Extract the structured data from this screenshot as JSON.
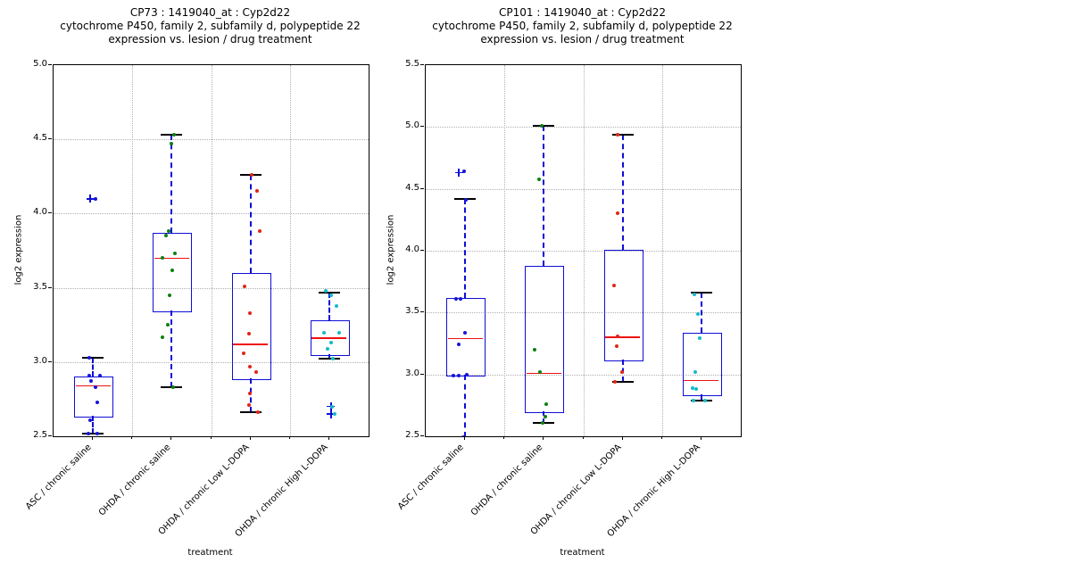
{
  "xlabel": "treatment",
  "ylabel": "log2 expression",
  "categories": [
    "ASC / chronic saline",
    "OHDA / chronic saline",
    "OHDA / chronic Low L-DOPA",
    "OHDA / chronic High L-DOPA"
  ],
  "colors": {
    "box": "#0e0ed6",
    "median": "#ee1111",
    "whisker": "#0e0ed6",
    "cap": "#000000",
    "flier": "#0e0ed6",
    "grid": "#b0b0b0",
    "axis": "#000000",
    "point_blue": "#1515dd",
    "point_green": "#0d7f12",
    "point_red": "#e12517",
    "point_cyan": "#12bcc7"
  },
  "chart_data": [
    {
      "id": "cp73",
      "type": "box",
      "title_lines": [
        "CP73 : 1419040_at : Cyp2d22",
        "cytochrome P450, family 2, subfamily d, polypeptide 22",
        "expression vs. lesion / drug treatment"
      ],
      "ylim": [
        2.5,
        5.0
      ],
      "ytick_labels": [
        "5.0",
        "4.5",
        "4.0",
        "3.5",
        "3.0",
        "2.5"
      ],
      "grid": true,
      "groups": [
        {
          "category": "ASC / chronic saline",
          "point_color": "#1515dd",
          "box": {
            "lo": 2.52,
            "q1": 2.64,
            "med": 2.84,
            "q3": 2.9,
            "hi": 3.03
          },
          "fliers": [
            [
              4.1,
              -3
            ]
          ],
          "points": [
            [
              4.1,
              3
            ],
            [
              3.03,
              -4
            ],
            [
              2.91,
              -4
            ],
            [
              2.91,
              8
            ],
            [
              2.87,
              -2
            ],
            [
              2.83,
              3
            ],
            [
              2.73,
              5
            ],
            [
              2.61,
              -3
            ],
            [
              2.52,
              -5
            ],
            [
              2.52,
              5
            ]
          ]
        },
        {
          "category": "OHDA / chronic saline",
          "point_color": "#0d7f12",
          "box": {
            "lo": 2.83,
            "q1": 3.35,
            "med": 3.7,
            "q3": 3.87,
            "hi": 4.53
          },
          "fliers": [],
          "points": [
            [
              4.53,
              3
            ],
            [
              4.47,
              0
            ],
            [
              3.88,
              -3
            ],
            [
              3.85,
              -6
            ],
            [
              3.73,
              4
            ],
            [
              3.7,
              -10
            ],
            [
              3.62,
              1
            ],
            [
              3.45,
              -2
            ],
            [
              3.25,
              -4
            ],
            [
              3.17,
              -10
            ],
            [
              2.83,
              2
            ]
          ]
        },
        {
          "category": "OHDA / chronic Low L-DOPA",
          "point_color": "#e12517",
          "box": {
            "lo": 2.66,
            "q1": 2.89,
            "med": 3.12,
            "q3": 3.6,
            "hi": 4.26
          },
          "fliers": [],
          "points": [
            [
              4.26,
              1
            ],
            [
              4.15,
              7
            ],
            [
              3.88,
              10
            ],
            [
              3.51,
              -7
            ],
            [
              3.33,
              -1
            ],
            [
              3.19,
              -2
            ],
            [
              3.06,
              -8
            ],
            [
              2.97,
              -1
            ],
            [
              2.93,
              6
            ],
            [
              2.79,
              -1
            ],
            [
              2.71,
              -2
            ],
            [
              2.66,
              8
            ]
          ]
        },
        {
          "category": "OHDA / chronic High L-DOPA",
          "point_color": "#12bcc7",
          "box": {
            "lo": 3.02,
            "q1": 3.05,
            "med": 3.16,
            "q3": 3.28,
            "hi": 3.47
          },
          "fliers": [
            [
              2.7,
              2
            ],
            [
              2.65,
              2
            ]
          ],
          "points": [
            [
              3.48,
              -4
            ],
            [
              3.45,
              2
            ],
            [
              3.38,
              8
            ],
            [
              3.2,
              -6
            ],
            [
              3.2,
              11
            ],
            [
              3.13,
              2
            ],
            [
              3.09,
              -2
            ],
            [
              3.02,
              4
            ],
            [
              2.7,
              3
            ],
            [
              2.65,
              6
            ]
          ]
        }
      ]
    },
    {
      "id": "cp101",
      "type": "box",
      "title_lines": [
        "CP101 : 1419040_at : Cyp2d22",
        "cytochrome P450, family 2, subfamily d, polypeptide 22",
        "expression vs. lesion / drug treatment"
      ],
      "ylim": [
        2.5,
        5.5
      ],
      "ytick_labels": [
        "5.5",
        "5.0",
        "4.5",
        "4.0",
        "3.5",
        "3.0",
        "2.5"
      ],
      "grid": true,
      "groups": [
        {
          "category": "ASC / chronic saline",
          "point_color": "#1515dd",
          "box": {
            "lo": 2.49,
            "q1": 3.0,
            "med": 3.29,
            "q3": 3.62,
            "hi": 4.42
          },
          "fliers": [
            [
              4.63,
              -7
            ]
          ],
          "points": [
            [
              4.64,
              -1
            ],
            [
              4.41,
              1
            ],
            [
              3.61,
              -10
            ],
            [
              3.61,
              -5
            ],
            [
              3.34,
              0
            ],
            [
              3.24,
              -7
            ],
            [
              3.0,
              2
            ],
            [
              2.99,
              -13
            ],
            [
              2.99,
              -7
            ],
            [
              2.49,
              -2
            ]
          ]
        },
        {
          "category": "OHDA / chronic saline",
          "point_color": "#0d7f12",
          "box": {
            "lo": 2.61,
            "q1": 2.7,
            "med": 3.01,
            "q3": 3.88,
            "hi": 5.01
          },
          "fliers": [],
          "points": [
            [
              5.01,
              -2
            ],
            [
              4.58,
              -5
            ],
            [
              3.2,
              -10
            ],
            [
              3.02,
              -4
            ],
            [
              2.76,
              3
            ],
            [
              2.66,
              2
            ],
            [
              2.61,
              -1
            ]
          ]
        },
        {
          "category": "OHDA / chronic Low L-DOPA",
          "point_color": "#e12517",
          "box": {
            "lo": 2.94,
            "q1": 3.12,
            "med": 3.3,
            "q3": 4.01,
            "hi": 4.94
          },
          "fliers": [],
          "points": [
            [
              4.94,
              -6
            ],
            [
              4.3,
              -6
            ],
            [
              3.72,
              -10
            ],
            [
              3.31,
              -6
            ],
            [
              3.23,
              -7
            ],
            [
              3.02,
              -1
            ],
            [
              2.94,
              -9
            ]
          ]
        },
        {
          "category": "OHDA / chronic High L-DOPA",
          "point_color": "#12bcc7",
          "box": {
            "lo": 2.79,
            "q1": 2.84,
            "med": 2.95,
            "q3": 3.34,
            "hi": 3.66
          },
          "fliers": [],
          "points": [
            [
              3.65,
              -8
            ],
            [
              3.49,
              -4
            ],
            [
              3.29,
              -2
            ],
            [
              3.02,
              -7
            ],
            [
              2.89,
              -10
            ],
            [
              2.88,
              -6
            ],
            [
              2.79,
              -9
            ],
            [
              2.79,
              4
            ]
          ]
        }
      ]
    }
  ]
}
